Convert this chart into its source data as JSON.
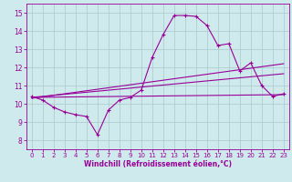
{
  "xlabel": "Windchill (Refroidissement éolien,°C)",
  "bg_color": "#ceeaec",
  "line_color": "#990099",
  "xlim": [
    -0.5,
    23.5
  ],
  "ylim": [
    7.5,
    15.5
  ],
  "xticks": [
    0,
    1,
    2,
    3,
    4,
    5,
    6,
    7,
    8,
    9,
    10,
    11,
    12,
    13,
    14,
    15,
    16,
    17,
    18,
    19,
    20,
    21,
    22,
    23
  ],
  "yticks": [
    8,
    9,
    10,
    11,
    12,
    13,
    14,
    15
  ],
  "grid_color": "#aac8cc",
  "series1_x": [
    0,
    1,
    2,
    3,
    4,
    5,
    6,
    7,
    8,
    9,
    10,
    11,
    12,
    13,
    14,
    15,
    16,
    17,
    18,
    19,
    20,
    21,
    22,
    23
  ],
  "series1_y": [
    10.4,
    10.2,
    9.8,
    9.55,
    9.4,
    9.3,
    8.3,
    9.65,
    10.2,
    10.35,
    10.75,
    12.55,
    13.8,
    14.85,
    14.85,
    14.8,
    14.3,
    13.2,
    13.3,
    11.8,
    12.25,
    11.0,
    10.4,
    10.55
  ],
  "series2_x": [
    0,
    23
  ],
  "series2_y": [
    10.35,
    10.5
  ],
  "series3_x": [
    0,
    23
  ],
  "series3_y": [
    10.35,
    11.65
  ],
  "series4_x": [
    0,
    23
  ],
  "series4_y": [
    10.3,
    12.2
  ]
}
